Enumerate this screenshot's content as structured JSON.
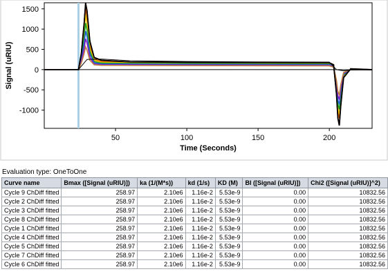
{
  "chart_data": {
    "type": "line",
    "xlabel": "Time (Seconds)",
    "ylabel": "Signal (uRIU)",
    "x_ticks": [
      50,
      100,
      150,
      200
    ],
    "y_ticks": [
      1500,
      1000,
      500,
      0,
      -500,
      -1000
    ],
    "xlim": [
      0,
      230
    ],
    "ylim": [
      -1450,
      1650
    ],
    "marker_line_x": 24,
    "grid": false,
    "colors": {
      "marker_line": "#a9cfe6",
      "series_palette": [
        "#000000",
        "#c00000",
        "#e06000",
        "#f0c000",
        "#20a020",
        "#2060d0",
        "#8020c0",
        "#c08040",
        "#505050"
      ],
      "fit_line": "#000000"
    },
    "series": [
      {
        "x": [
          0,
          24,
          26,
          28,
          29,
          30,
          32,
          35,
          40,
          60,
          100,
          150,
          200,
          203,
          205,
          206,
          207,
          208,
          210,
          215,
          230
        ],
        "y": [
          0,
          0,
          400,
          1150,
          1640,
          1450,
          700,
          300,
          230,
          190,
          180,
          175,
          170,
          120,
          -600,
          -1200,
          -1380,
          -900,
          -200,
          20,
          0
        ]
      },
      {
        "x": [
          0,
          24,
          26,
          28,
          29,
          30,
          32,
          35,
          40,
          60,
          100,
          150,
          200,
          203,
          205,
          206,
          207,
          208,
          210,
          215,
          230
        ],
        "y": [
          0,
          0,
          350,
          1000,
          1500,
          1300,
          600,
          260,
          200,
          180,
          170,
          165,
          160,
          110,
          -500,
          -1050,
          -1200,
          -800,
          -180,
          15,
          0
        ]
      },
      {
        "x": [
          0,
          24,
          26,
          28,
          29,
          30,
          32,
          35,
          40,
          60,
          100,
          150,
          200,
          203,
          205,
          206,
          207,
          208,
          210,
          215,
          230
        ],
        "y": [
          0,
          0,
          320,
          900,
          1350,
          1150,
          520,
          230,
          180,
          165,
          158,
          152,
          148,
          100,
          -450,
          -950,
          -1100,
          -700,
          -150,
          10,
          0
        ]
      },
      {
        "x": [
          0,
          24,
          26,
          28,
          29,
          30,
          32,
          35,
          40,
          60,
          100,
          150,
          200,
          203,
          205,
          206,
          207,
          208,
          210,
          215,
          230
        ],
        "y": [
          0,
          0,
          280,
          780,
          1150,
          980,
          450,
          200,
          160,
          150,
          145,
          140,
          136,
          90,
          -400,
          -850,
          -980,
          -620,
          -130,
          8,
          0
        ]
      },
      {
        "x": [
          0,
          24,
          26,
          28,
          29,
          30,
          32,
          35,
          40,
          60,
          100,
          150,
          200,
          203,
          205,
          206,
          207,
          208,
          210,
          215,
          230
        ],
        "y": [
          0,
          0,
          250,
          650,
          950,
          820,
          380,
          170,
          140,
          135,
          130,
          126,
          122,
          80,
          -350,
          -750,
          -860,
          -540,
          -110,
          6,
          0
        ]
      },
      {
        "x": [
          0,
          24,
          26,
          28,
          29,
          30,
          32,
          35,
          40,
          60,
          100,
          150,
          200,
          203,
          205,
          206,
          207,
          208,
          210,
          215,
          230
        ],
        "y": [
          0,
          0,
          200,
          520,
          760,
          660,
          300,
          140,
          120,
          118,
          114,
          110,
          106,
          70,
          -300,
          -640,
          -740,
          -460,
          -90,
          4,
          0
        ]
      },
      {
        "x": [
          0,
          24,
          26,
          28,
          29,
          30,
          32,
          35,
          40,
          60,
          100,
          150,
          200,
          203,
          205,
          206,
          207,
          208,
          210,
          215,
          230
        ],
        "y": [
          0,
          0,
          160,
          400,
          560,
          480,
          230,
          120,
          105,
          102,
          98,
          95,
          92,
          60,
          -260,
          -540,
          -620,
          -380,
          -70,
          2,
          0
        ]
      }
    ],
    "fit_lines": [
      {
        "x": [
          0,
          24,
          30,
          40,
          60,
          100,
          150,
          200,
          205,
          210,
          215,
          230
        ],
        "y": [
          0,
          0,
          250,
          260,
          220,
          200,
          190,
          185,
          0,
          -30,
          -10,
          0
        ]
      },
      {
        "x": [
          0,
          24,
          200,
          230
        ],
        "y": [
          0,
          0,
          0,
          -10
        ]
      }
    ]
  },
  "evaluation": {
    "label": "Evaluation type: OneToOne"
  },
  "table": {
    "headers": [
      "Curve name",
      "Bmax ([Signal (uRIU)])",
      "ka (1/(M*s))",
      "kd (1/s)",
      "KD (M)",
      "BI ([Signal (uRIU)])",
      "Chi2 ([Signal (uRIU)]^2)"
    ],
    "rows": [
      [
        "Cycle 9 ChDiff fitted",
        "258.97",
        "2.10e6",
        "1.16e-2",
        "5.53e-9",
        "0.00",
        "10832.56"
      ],
      [
        "Cycle 2 ChDiff fitted",
        "258.97",
        "2.10e6",
        "1.16e-2",
        "5.53e-9",
        "0.00",
        "10832.56"
      ],
      [
        "Cycle 3 ChDiff fitted",
        "258.97",
        "2.10e6",
        "1.16e-2",
        "5.53e-9",
        "0.00",
        "10832.56"
      ],
      [
        "Cycle 8 ChDiff fitted",
        "258.97",
        "2.10e6",
        "1.16e-2",
        "5.53e-9",
        "0.00",
        "10832.56"
      ],
      [
        "Cycle 1 ChDiff fitted",
        "258.97",
        "2.10e6",
        "1.16e-2",
        "5.53e-9",
        "0.00",
        "10832.56"
      ],
      [
        "Cycle 4 ChDiff fitted",
        "258.97",
        "2.10e6",
        "1.16e-2",
        "5.53e-9",
        "0.00",
        "10832.56"
      ],
      [
        "Cycle 5 ChDiff fitted",
        "258.97",
        "2.10e6",
        "1.16e-2",
        "5.53e-9",
        "0.00",
        "10832.56"
      ],
      [
        "Cycle 7 ChDiff fitted",
        "258.97",
        "2.10e6",
        "1.16e-2",
        "5.53e-9",
        "0.00",
        "10832.56"
      ],
      [
        "Cycle 6 ChDiff fitted",
        "258.97",
        "2.10e6",
        "1.16e-2",
        "5.53e-9",
        "0.00",
        "10832.56"
      ]
    ]
  }
}
